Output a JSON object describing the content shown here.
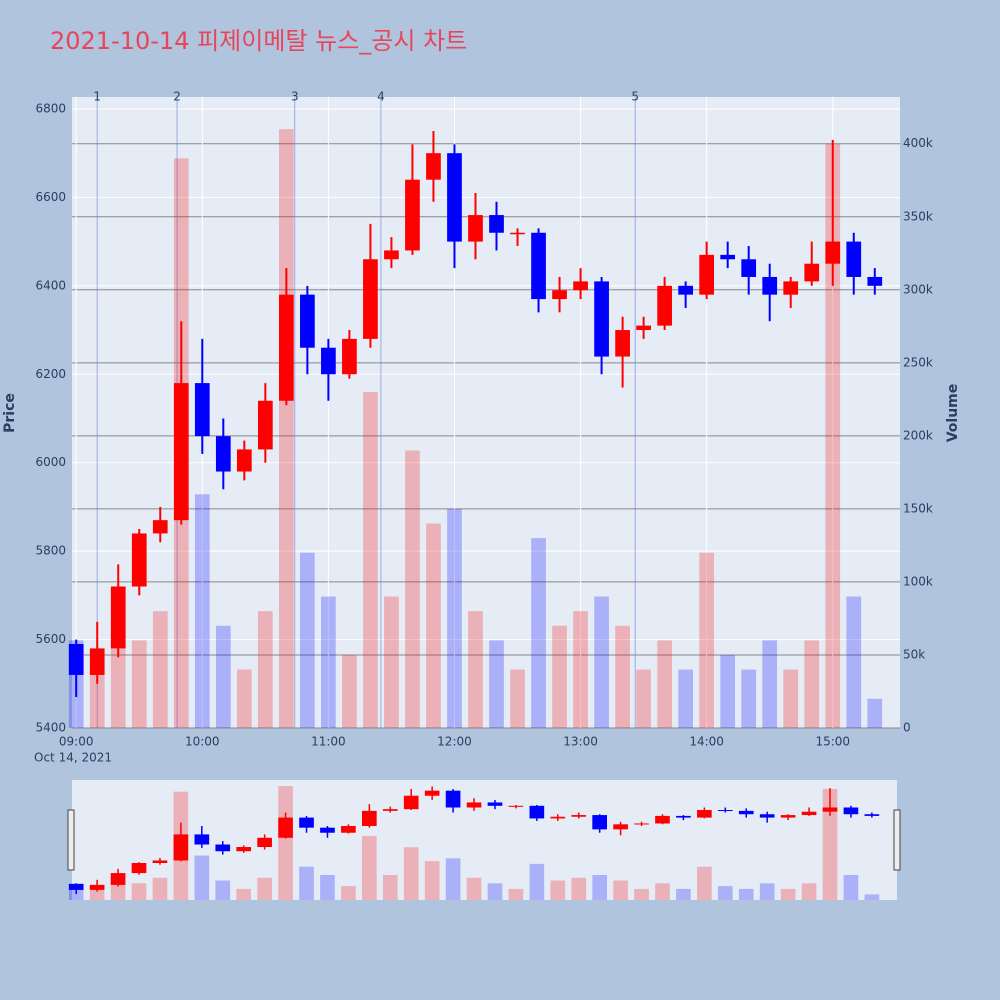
{
  "chart_data": {
    "type": "candlestick",
    "title": "2021-10-14 피제이메탈 뉴스_공시 차트",
    "y_label": "Price",
    "y2_label": "Volume",
    "x_date_label": "Oct 14, 2021",
    "x": [
      "09:00",
      "09:10",
      "09:20",
      "09:30",
      "09:40",
      "09:50",
      "10:00",
      "10:10",
      "10:20",
      "10:30",
      "10:40",
      "10:50",
      "11:00",
      "11:10",
      "11:20",
      "11:30",
      "11:40",
      "11:50",
      "12:00",
      "12:10",
      "12:20",
      "12:30",
      "12:40",
      "12:50",
      "13:00",
      "13:10",
      "13:20",
      "13:30",
      "13:40",
      "13:50",
      "14:00",
      "14:10",
      "14:20",
      "14:30",
      "14:40",
      "14:50",
      "15:00",
      "15:10",
      "15:20"
    ],
    "open": [
      5590,
      5520,
      5580,
      5720,
      5840,
      5870,
      6180,
      6060,
      5980,
      6030,
      6140,
      6380,
      6260,
      6200,
      6280,
      6460,
      6480,
      6640,
      6700,
      6500,
      6560,
      6520,
      6520,
      6370,
      6390,
      6410,
      6240,
      6300,
      6310,
      6400,
      6380,
      6470,
      6460,
      6420,
      6380,
      6410,
      6450,
      6500,
      6420
    ],
    "high": [
      5600,
      5640,
      5770,
      5850,
      5900,
      6320,
      6280,
      6100,
      6050,
      6180,
      6440,
      6400,
      6280,
      6300,
      6540,
      6510,
      6720,
      6750,
      6720,
      6610,
      6590,
      6530,
      6530,
      6420,
      6440,
      6420,
      6330,
      6330,
      6420,
      6410,
      6500,
      6500,
      6490,
      6450,
      6420,
      6500,
      6730,
      6520,
      6440
    ],
    "low": [
      5470,
      5500,
      5560,
      5700,
      5820,
      5860,
      6020,
      5940,
      5960,
      6000,
      6130,
      6200,
      6140,
      6190,
      6260,
      6440,
      6470,
      6590,
      6440,
      6460,
      6480,
      6490,
      6340,
      6340,
      6370,
      6200,
      6170,
      6280,
      6300,
      6350,
      6370,
      6440,
      6380,
      6320,
      6350,
      6400,
      6400,
      6380,
      6380
    ],
    "close": [
      5520,
      5580,
      5720,
      5840,
      5870,
      6180,
      6060,
      5980,
      6030,
      6140,
      6380,
      6260,
      6200,
      6280,
      6460,
      6480,
      6640,
      6700,
      6500,
      6560,
      6520,
      6520,
      6370,
      6390,
      6410,
      6240,
      6300,
      6310,
      6400,
      6380,
      6470,
      6460,
      6420,
      6380,
      6410,
      6450,
      6500,
      6420,
      6400
    ],
    "volume": [
      60000,
      40000,
      70000,
      60000,
      80000,
      390000,
      160000,
      70000,
      40000,
      80000,
      410000,
      120000,
      90000,
      50000,
      230000,
      90000,
      190000,
      140000,
      150000,
      80000,
      60000,
      40000,
      130000,
      70000,
      80000,
      90000,
      70000,
      40000,
      60000,
      40000,
      120000,
      50000,
      40000,
      60000,
      40000,
      60000,
      400000,
      90000,
      20000
    ],
    "increasing_color": "#ff0000",
    "decreasing_color": "#0000ff",
    "xlim": [
      "08:58",
      "15:32"
    ],
    "xticks": [
      "09:00",
      "10:00",
      "11:00",
      "12:00",
      "13:00",
      "14:00",
      "15:00"
    ],
    "ylim": [
      5400,
      6827
    ],
    "yticks": [
      5400,
      5600,
      5800,
      6000,
      6200,
      6400,
      6600,
      6800
    ],
    "y2lim": [
      0,
      432000
    ],
    "y2ticks": [
      0,
      {
        "value": 50000,
        "label": "50k"
      },
      {
        "value": 100000,
        "label": "100k"
      },
      {
        "value": 150000,
        "label": "150k"
      },
      {
        "value": 200000,
        "label": "200k"
      },
      {
        "value": 250000,
        "label": "250k"
      },
      {
        "value": 300000,
        "label": "300k"
      },
      {
        "value": 350000,
        "label": "350k"
      },
      {
        "value": 400000,
        "label": "400k"
      }
    ],
    "news": [
      {
        "label": "1",
        "x": "09:10"
      },
      {
        "label": "2",
        "x": "09:48"
      },
      {
        "label": "3",
        "x": "10:44"
      },
      {
        "label": "4",
        "x": "11:25"
      },
      {
        "label": "5",
        "x": "13:26"
      }
    ],
    "grid": true
  }
}
